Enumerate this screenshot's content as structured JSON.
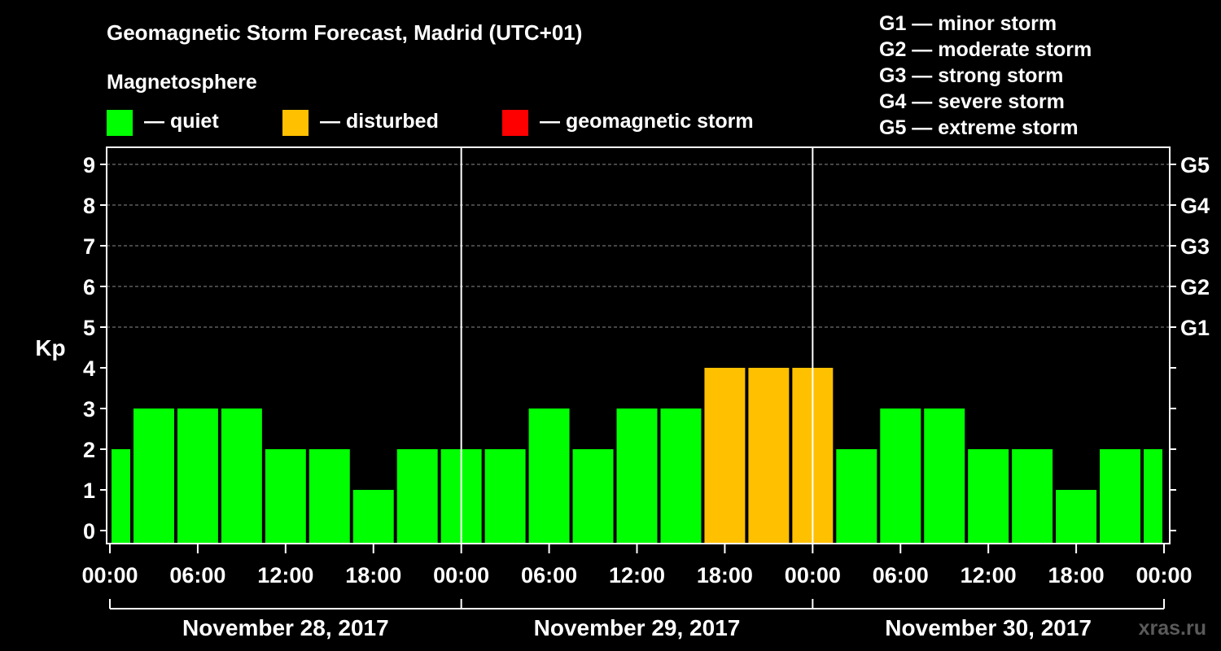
{
  "chart_data": {
    "type": "bar",
    "title": "Geomagnetic Storm Forecast, Madrid (UTC+01)",
    "legend_title": "Magnetosphere",
    "legend": [
      {
        "label": "— quiet",
        "color": "#00ff00"
      },
      {
        "label": "— disturbed",
        "color": "#ffc000"
      },
      {
        "label": "— geomagnetic storm",
        "color": "#ff0000"
      }
    ],
    "storm_scale": [
      "G1 — minor storm",
      "G2 — moderate storm",
      "G3 — strong storm",
      "G4 — severe storm",
      "G5 — extreme storm"
    ],
    "ylabel": "Kp",
    "ylim": [
      0,
      9
    ],
    "yticks": [
      "0",
      "1",
      "2",
      "3",
      "4",
      "5",
      "6",
      "7",
      "8",
      "9"
    ],
    "right_ticks": [
      {
        "kp": 5,
        "label": "G1"
      },
      {
        "kp": 6,
        "label": "G2"
      },
      {
        "kp": 7,
        "label": "G3"
      },
      {
        "kp": 8,
        "label": "G4"
      },
      {
        "kp": 9,
        "label": "G5"
      }
    ],
    "x_tick_labels": [
      "00:00",
      "06:00",
      "12:00",
      "18:00",
      "00:00",
      "06:00",
      "12:00",
      "18:00",
      "00:00",
      "06:00",
      "12:00",
      "18:00",
      "00:00"
    ],
    "x_range_hours": [
      0,
      72
    ],
    "days": [
      "November 28, 2017",
      "November 29, 2017",
      "November 30, 2017"
    ],
    "bar_start_hours": [
      0,
      1.5,
      4.5,
      7.5,
      10.5,
      13.5,
      16.5,
      19.5,
      22.5,
      25.5,
      28.5,
      31.5,
      34.5,
      37.5,
      40.5,
      43.5,
      46.5,
      49.5,
      52.5,
      55.5,
      58.5,
      61.5,
      64.5,
      67.5,
      70.5
    ],
    "bar_end_hours": [
      1.5,
      4.5,
      7.5,
      10.5,
      13.5,
      16.5,
      19.5,
      22.5,
      25.5,
      28.5,
      31.5,
      34.5,
      37.5,
      40.5,
      43.5,
      46.5,
      49.5,
      52.5,
      55.5,
      58.5,
      61.5,
      64.5,
      67.5,
      70.5,
      72
    ],
    "values": [
      2,
      3,
      3,
      3,
      2,
      2,
      1,
      2,
      2,
      2,
      3,
      2,
      3,
      3,
      4,
      4,
      4,
      2,
      3,
      3,
      2,
      2,
      1,
      2,
      2
    ],
    "colors": {
      "quiet": "#00ff00",
      "disturbed": "#ffc000",
      "storm": "#ff0000",
      "background": "#000000",
      "axis": "#ffffff",
      "grid": "#8c8c8c"
    },
    "watermark": "xras.ru"
  }
}
